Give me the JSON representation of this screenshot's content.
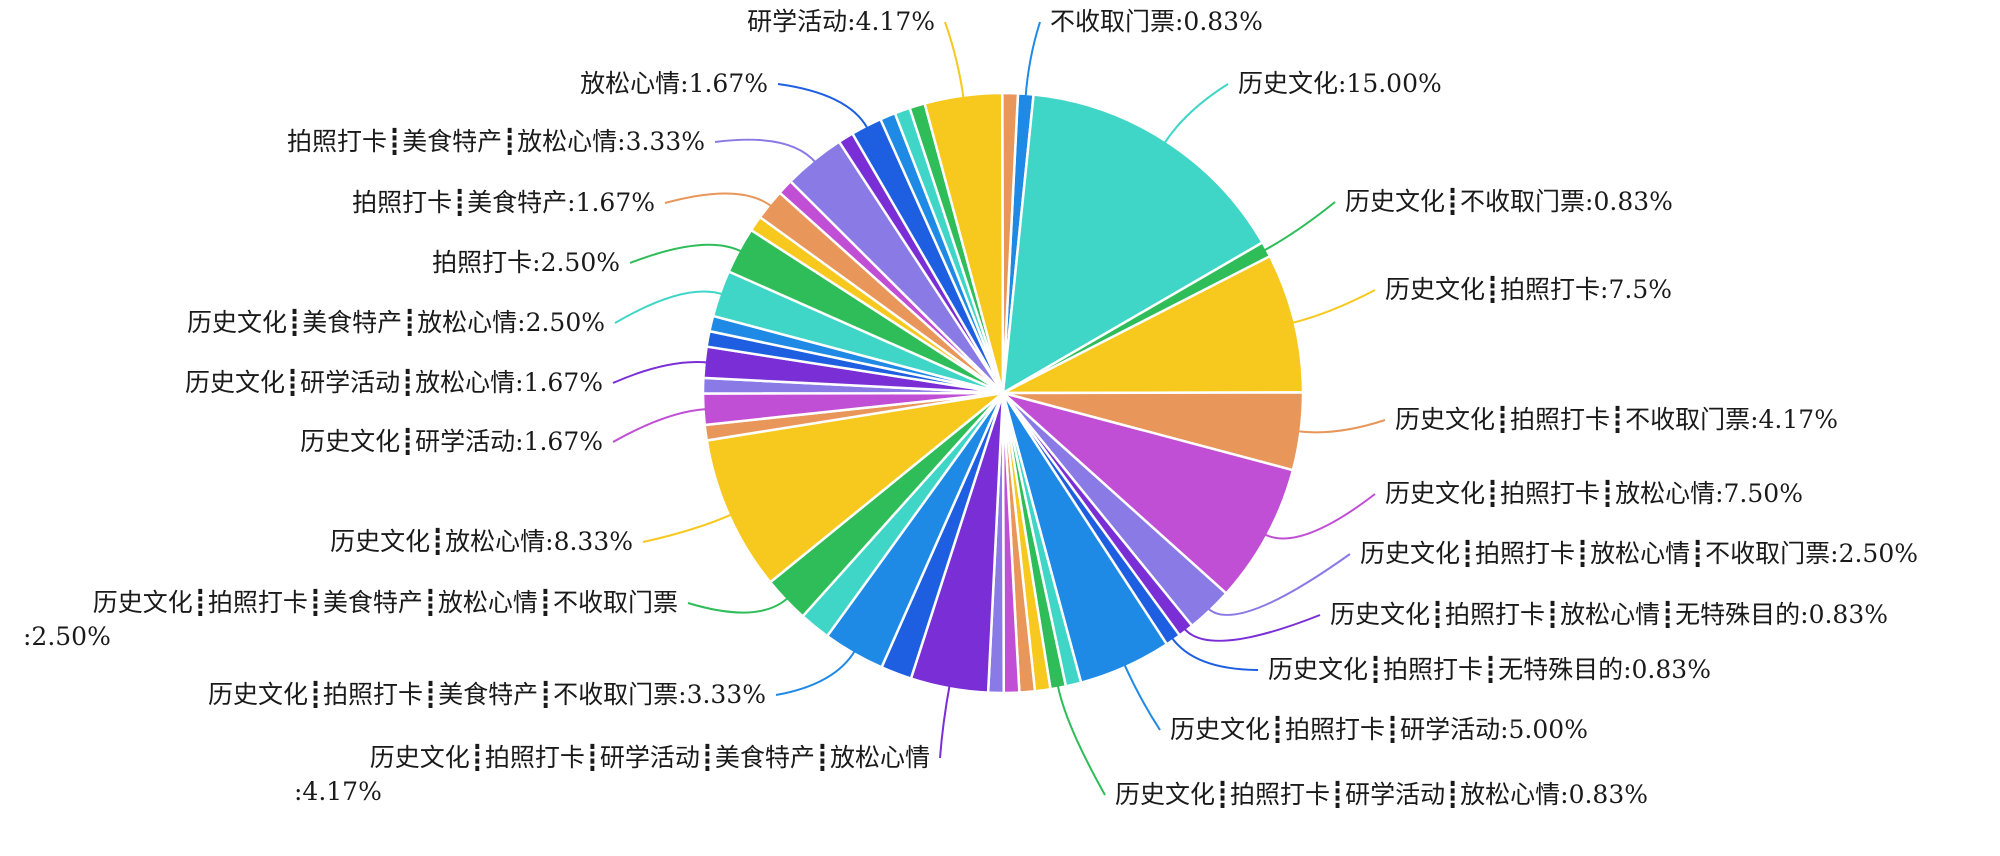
{
  "chart_data": {
    "type": "pie",
    "unit": "%",
    "slices": [
      {
        "label": "不收取门票:0.83%",
        "value": 0.83,
        "color": "#1f8ae6",
        "text": [
          "不收取门票:0.83%"
        ]
      },
      {
        "label": "历史文化:15.00%",
        "value": 15.0,
        "color": "#40d6c7",
        "text": [
          "历史文化:15.00%"
        ]
      },
      {
        "label": "历史文化┋不收取门票:0.83%",
        "value": 0.83,
        "color": "#2ebd59",
        "text": [
          "历史文化┋不收取门票:0.83%"
        ]
      },
      {
        "label": "历史文化┋拍照打卡:7.5%",
        "value": 7.5,
        "color": "#f7c81e",
        "text": [
          "历史文化┋拍照打卡:7.5%"
        ]
      },
      {
        "label": "历史文化┋拍照打卡┋不收取门票:4.17%",
        "value": 4.17,
        "color": "#e8965a",
        "text": [
          "历史文化┋拍照打卡┋不收取门票:4.17%"
        ]
      },
      {
        "label": "历史文化┋拍照打卡┋放松心情:7.50%",
        "value": 7.5,
        "color": "#c04fd6",
        "text": [
          "历史文化┋拍照打卡┋放松心情:7.50%"
        ]
      },
      {
        "label": "历史文化┋拍照打卡┋放松心情┋不收取门票:2.50%",
        "value": 2.5,
        "color": "#8a7ae6",
        "text": [
          "历史文化┋拍照打卡┋放松心情┋不收取门票:2.50%"
        ]
      },
      {
        "label": "历史文化┋拍照打卡┋放松心情┋无特殊目的:0.83%",
        "value": 0.83,
        "color": "#7a2fd6",
        "text": [
          "历史文化┋拍照打卡┋放松心情┋无特殊目的:0.83%"
        ]
      },
      {
        "label": "历史文化┋拍照打卡┋无特殊目的:0.83%",
        "value": 0.83,
        "color": "#1d5fe0",
        "text": [
          "历史文化┋拍照打卡┋无特殊目的:0.83%"
        ]
      },
      {
        "label": "历史文化┋拍照打卡┋研学活动:5.00%",
        "value": 5.0,
        "color": "#1f8ae6",
        "text": [
          "历史文化┋拍照打卡┋研学活动:5.00%"
        ]
      },
      {
        "label": "",
        "value": 0.83,
        "color": "#40d6c7",
        "text": []
      },
      {
        "label": "历史文化┋拍照打卡┋研学活动┋放松心情:0.83%",
        "value": 0.83,
        "color": "#2ebd59",
        "text": [
          "历史文化┋拍照打卡┋研学活动┋放松心情:0.83%"
        ]
      },
      {
        "label": "",
        "value": 0.83,
        "color": "#f7c81e",
        "text": []
      },
      {
        "label": "",
        "value": 0.83,
        "color": "#e8965a",
        "text": []
      },
      {
        "label": "",
        "value": 0.83,
        "color": "#c04fd6",
        "text": []
      },
      {
        "label": "",
        "value": 0.83,
        "color": "#8a7ae6",
        "text": []
      },
      {
        "label": "历史文化┋拍照打卡┋研学活动┋美食特产┋放松心情:4.17%",
        "value": 4.17,
        "color": "#7a2fd6",
        "text": [
          "历史文化┋拍照打卡┋研学活动┋美食特产┋放松心情",
          ":4.17%"
        ]
      },
      {
        "label": "",
        "value": 1.67,
        "color": "#1d5fe0",
        "text": []
      },
      {
        "label": "历史文化┋拍照打卡┋美食特产┋不收取门票:3.33%",
        "value": 3.33,
        "color": "#1f8ae6",
        "text": [
          "历史文化┋拍照打卡┋美食特产┋不收取门票:3.33%"
        ]
      },
      {
        "label": "",
        "value": 1.67,
        "color": "#40d6c7",
        "text": []
      },
      {
        "label": "历史文化┋拍照打卡┋美食特产┋放松心情┋不收取门票:2.50%",
        "value": 2.5,
        "color": "#2ebd59",
        "text": [
          "历史文化┋拍照打卡┋美食特产┋放松心情┋不收取门票",
          ":2.50%"
        ]
      },
      {
        "label": "历史文化┋放松心情:8.33%",
        "value": 8.33,
        "color": "#f7c81e",
        "text": [
          "历史文化┋放松心情:8.33%"
        ]
      },
      {
        "label": "",
        "value": 0.83,
        "color": "#e8965a",
        "text": []
      },
      {
        "label": "历史文化┋研学活动:1.67%",
        "value": 1.67,
        "color": "#c04fd6",
        "text": [
          "历史文化┋研学活动:1.67%"
        ]
      },
      {
        "label": "",
        "value": 0.83,
        "color": "#8a7ae6",
        "text": []
      },
      {
        "label": "历史文化┋研学活动┋放松心情:1.67%",
        "value": 1.67,
        "color": "#7a2fd6",
        "text": [
          "历史文化┋研学活动┋放松心情:1.67%"
        ]
      },
      {
        "label": "",
        "value": 0.83,
        "color": "#1d5fe0",
        "text": []
      },
      {
        "label": "",
        "value": 0.83,
        "color": "#1f8ae6",
        "text": []
      },
      {
        "label": "历史文化┋美食特产┋放松心情:2.50%",
        "value": 2.5,
        "color": "#40d6c7",
        "text": [
          "历史文化┋美食特产┋放松心情:2.50%"
        ]
      },
      {
        "label": "拍照打卡:2.50%",
        "value": 2.5,
        "color": "#2ebd59",
        "text": [
          "拍照打卡:2.50%"
        ]
      },
      {
        "label": "",
        "value": 0.83,
        "color": "#f7c81e",
        "text": []
      },
      {
        "label": "拍照打卡┋美食特产:1.67%",
        "value": 1.67,
        "color": "#e8965a",
        "text": [
          "拍照打卡┋美食特产:1.67%"
        ]
      },
      {
        "label": "",
        "value": 0.83,
        "color": "#c04fd6",
        "text": []
      },
      {
        "label": "拍照打卡┋美食特产┋放松心情:3.33%",
        "value": 3.33,
        "color": "#8a7ae6",
        "text": [
          "拍照打卡┋美食特产┋放松心情:3.33%"
        ]
      },
      {
        "label": "",
        "value": 0.83,
        "color": "#7a2fd6",
        "text": []
      },
      {
        "label": "放松心情:1.67%",
        "value": 1.67,
        "color": "#1d5fe0",
        "text": [
          "放松心情:1.67%"
        ]
      },
      {
        "label": "",
        "value": 0.83,
        "color": "#1f8ae6",
        "text": []
      },
      {
        "label": "",
        "value": 0.83,
        "color": "#40d6c7",
        "text": []
      },
      {
        "label": "",
        "value": 0.83,
        "color": "#2ebd59",
        "text": []
      },
      {
        "label": "研学活动:4.17%",
        "value": 4.17,
        "color": "#f7c81e",
        "text": [
          "研学活动:4.17%"
        ]
      },
      {
        "label": "",
        "value": 0.83,
        "color": "#e8965a",
        "text": []
      }
    ]
  }
}
